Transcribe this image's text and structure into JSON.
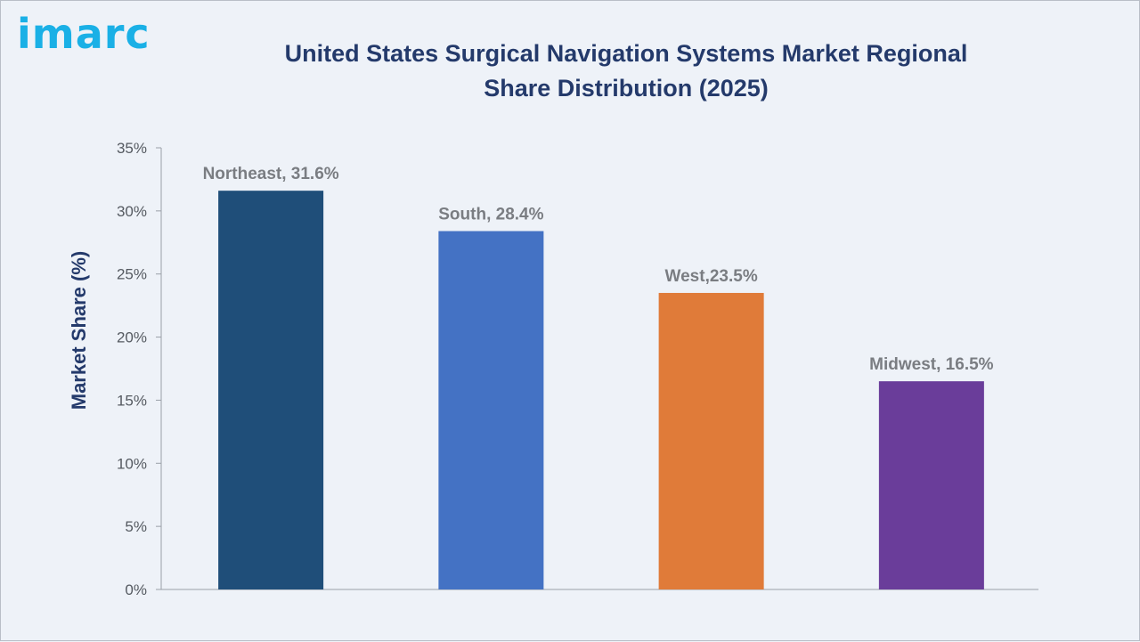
{
  "brand": {
    "logo_text": "imarc"
  },
  "chart_data": {
    "type": "bar",
    "title": "United States Surgical Navigation Systems Market Regional Share Distribution (2025)",
    "xlabel": "",
    "ylabel": "Market Share (%)",
    "ylim": [
      0,
      35
    ],
    "yticks": [
      0,
      5,
      10,
      15,
      20,
      25,
      30,
      35
    ],
    "ytick_labels": [
      "0%",
      "5%",
      "10%",
      "15%",
      "20%",
      "25%",
      "30%",
      "35%"
    ],
    "categories": [
      "Northeast",
      "South",
      "West",
      "Midwest"
    ],
    "values": [
      31.6,
      28.4,
      23.5,
      16.5
    ],
    "data_labels": [
      "Northeast, 31.6%",
      "South, 28.4%",
      "West,23.5%",
      "Midwest, 16.5%"
    ],
    "colors": [
      "#1f4e79",
      "#4472c4",
      "#e07b39",
      "#6a3d9a"
    ],
    "grid": false,
    "legend": "none"
  }
}
